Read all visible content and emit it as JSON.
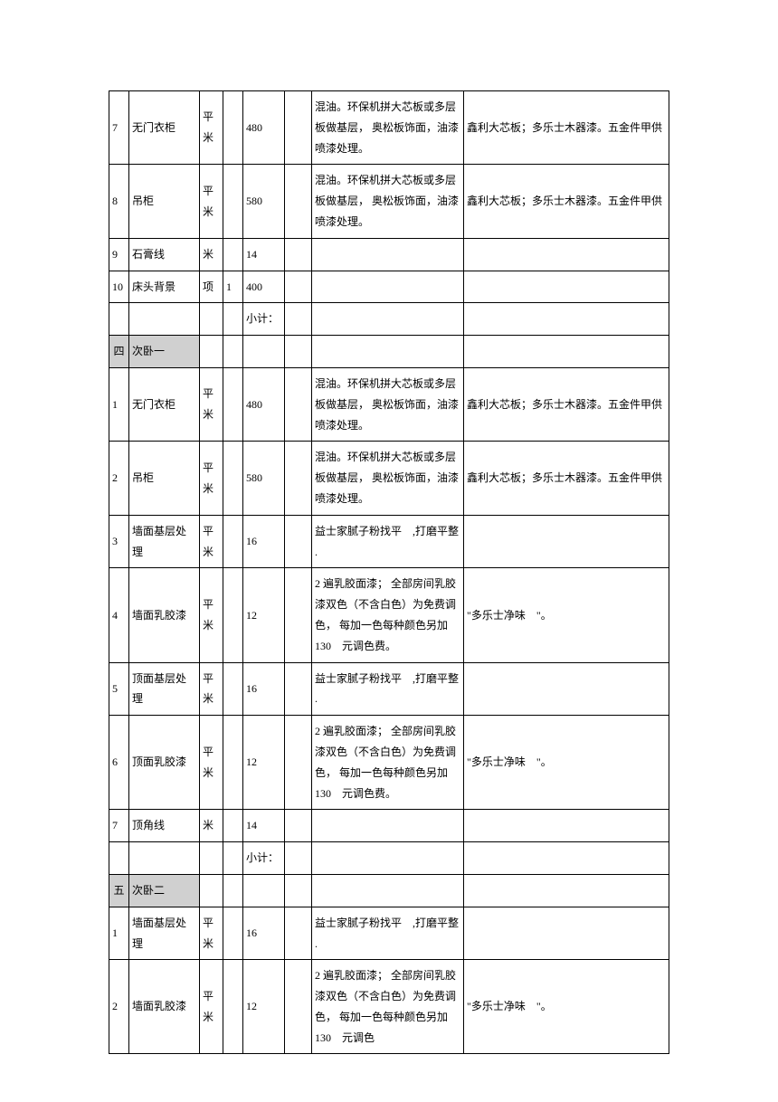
{
  "rows": [
    {
      "num": "7",
      "name": "无门衣柜",
      "unit": "平米",
      "qty": "",
      "price": "480",
      "desc": "混油。环保机拼大芯板或多层板做基层， 奥松板饰面，油漆喷漆处理。",
      "remark": "鑫利大芯板；多乐士木器漆。五金件甲供"
    },
    {
      "num": "8",
      "name": "吊柜",
      "unit": "平米",
      "qty": "",
      "price": "580",
      "desc": "混油。环保机拼大芯板或多层板做基层， 奥松板饰面，油漆喷漆处理。",
      "remark": "鑫利大芯板；多乐士木器漆。五金件甲供"
    },
    {
      "num": "9",
      "name": "石膏线",
      "unit": "米",
      "qty": "",
      "price": "14",
      "desc": "",
      "remark": ""
    },
    {
      "num": "10",
      "name": "床头背景",
      "unit": "项",
      "qty": "1",
      "price": "400",
      "desc": "",
      "remark": ""
    },
    {
      "type": "subtotal",
      "price": "小计："
    },
    {
      "type": "section",
      "num": "四",
      "name": "次卧一"
    },
    {
      "num": "1",
      "name": "无门衣柜",
      "unit": "平米",
      "qty": "",
      "price": "480",
      "desc": "混油。环保机拼大芯板或多层板做基层， 奥松板饰面，油漆喷漆处理。",
      "remark": "鑫利大芯板；多乐士木器漆。五金件甲供"
    },
    {
      "num": "2",
      "name": "吊柜",
      "unit": "平米",
      "qty": "",
      "price": "580",
      "desc": "混油。环保机拼大芯板或多层板做基层， 奥松板饰面，油漆喷漆处理。",
      "remark": "鑫利大芯板；多乐士木器漆。五金件甲供"
    },
    {
      "num": "3",
      "name": "墙面基层处理",
      "unit": "平米",
      "qty": "",
      "price": "16",
      "desc": "益士家腻子粉找平　,打磨平整 .",
      "remark": ""
    },
    {
      "num": "4",
      "name": "墙面乳胶漆",
      "unit": "平米",
      "qty": "",
      "price": "12",
      "desc": "2 遍乳胶面漆； 全部房间乳胶漆双色（不含白色）为免费调色， 每加一色每种颜色另加 130　元调色费。",
      "remark": "\"多乐士净味　\"。"
    },
    {
      "num": "5",
      "name": "顶面基层处理",
      "unit": "平米",
      "qty": "",
      "price": "16",
      "desc": "益士家腻子粉找平　,打磨平整 .",
      "remark": ""
    },
    {
      "num": "6",
      "name": "顶面乳胶漆",
      "unit": "平米",
      "qty": "",
      "price": "12",
      "desc": "2 遍乳胶面漆； 全部房间乳胶漆双色（不含白色）为免费调色， 每加一色每种颜色另加 130　元调色费。",
      "remark": "\"多乐士净味　\"。"
    },
    {
      "num": "7",
      "name": "顶角线",
      "unit": "米",
      "qty": "",
      "price": "14",
      "desc": "",
      "remark": ""
    },
    {
      "type": "subtotal",
      "price": "小计："
    },
    {
      "type": "section",
      "num": "五",
      "name": "次卧二"
    },
    {
      "num": "1",
      "name": "墙面基层处理",
      "unit": "平米",
      "qty": "",
      "price": "16",
      "desc": "益士家腻子粉找平　,打磨平整 .",
      "remark": ""
    },
    {
      "num": "2",
      "name": "墙面乳胶漆",
      "unit": "平米",
      "qty": "",
      "price": "12",
      "desc": "2 遍乳胶面漆； 全部房间乳胶漆双色（不含白色）为免费调色， 每加一色每种颜色另加 130　元调色",
      "remark": "\"多乐士净味　\"。",
      "lastRow": true
    }
  ]
}
